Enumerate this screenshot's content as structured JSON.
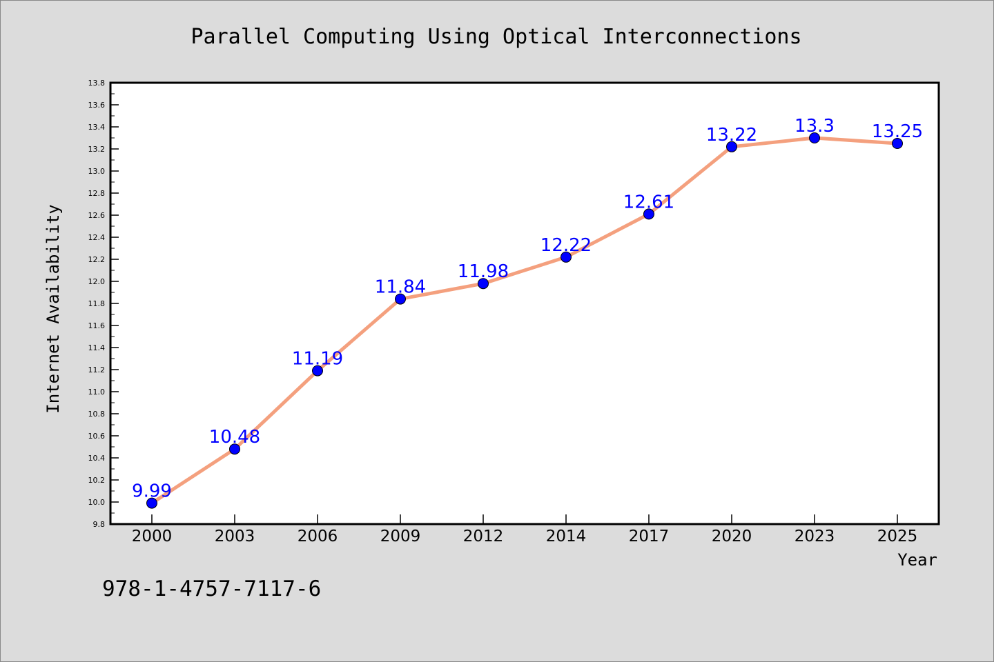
{
  "chart_data": {
    "type": "line",
    "title": "Parallel Computing Using Optical Interconnections",
    "xlabel": "Year",
    "ylabel": "Internet Availability",
    "categories": [
      "2000",
      "2003",
      "2006",
      "2009",
      "2012",
      "2014",
      "2017",
      "2020",
      "2023",
      "2025"
    ],
    "series": [
      {
        "values": [
          9.99,
          10.48,
          11.19,
          11.84,
          11.98,
          12.22,
          12.61,
          13.22,
          13.3,
          13.25
        ],
        "labels": [
          "9.99",
          "10.48",
          "11.19",
          "11.84",
          "11.98",
          "12.22",
          "12.61",
          "13.22",
          "13.3",
          "13.25"
        ],
        "line_color": "#f4a07e",
        "marker_color": "#0000ff",
        "label_color": "#0000ff"
      }
    ],
    "ylim": [
      9.8,
      13.8
    ],
    "ytick_labels": [
      "9.8",
      "10.0",
      "10.2",
      "10.4",
      "10.6",
      "10.8",
      "11.0",
      "11.2",
      "11.4",
      "11.6",
      "11.8",
      "12.0",
      "12.2",
      "12.4",
      "12.6",
      "12.8",
      "13.0",
      "13.2",
      "13.4",
      "13.6",
      "13.8"
    ],
    "grid": false,
    "background": "#dcdcdc",
    "plot_background": "#ffffff"
  },
  "footer": {
    "isbn": "978-1-4757-7117-6"
  }
}
